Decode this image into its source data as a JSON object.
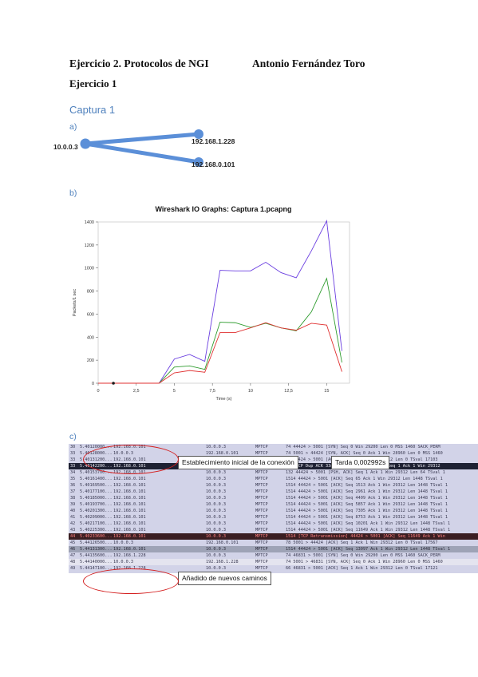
{
  "heading": {
    "title": "Ejercicio 2. Protocolos de NGI",
    "author": "Antonio Fernández Toro",
    "exercise": "Ejercicio 1"
  },
  "capture": "Captura 1",
  "sections": {
    "a": "a)",
    "b": "b)",
    "c": "c)"
  },
  "network": {
    "nodes": [
      {
        "label": "10.0.0.3"
      },
      {
        "label": "192.168.1.228"
      },
      {
        "label": "192.168.0.101"
      }
    ]
  },
  "chart_data": {
    "type": "line",
    "title": "Wireshark IO Graphs: Captura 1.pcapng",
    "xlabel": "Time (s)",
    "ylabel": "Packets/1 sec",
    "xlim": [
      0,
      16.5
    ],
    "ylim": [
      0,
      1400
    ],
    "xticks": [
      "0",
      "2,5",
      "5",
      "7,5",
      "10",
      "12,5",
      "15"
    ],
    "yticks": [
      "0",
      "200",
      "400",
      "600",
      "800",
      "1000",
      "1200",
      "1400"
    ],
    "x": [
      0,
      1,
      2,
      3,
      4,
      5,
      6,
      7,
      8,
      9,
      10,
      11,
      12,
      13,
      14,
      15,
      16
    ],
    "series": [
      {
        "color": "#6a3ee0",
        "values": [
          0,
          0,
          0,
          0,
          0,
          210,
          250,
          190,
          980,
          975,
          975,
          1050,
          960,
          915,
          1150,
          1410,
          280
        ]
      },
      {
        "color": "#2e9c2e",
        "values": [
          0,
          0,
          0,
          0,
          0,
          140,
          150,
          120,
          530,
          525,
          485,
          520,
          480,
          455,
          620,
          910,
          180
        ]
      },
      {
        "color": "#e03030",
        "values": [
          0,
          0,
          0,
          0,
          0,
          90,
          110,
          95,
          440,
          440,
          480,
          525,
          480,
          460,
          520,
          505,
          100
        ]
      }
    ]
  },
  "packets": {
    "rows": [
      {
        "no": "30",
        "time": "5.40120000...",
        "src": "192.168.0.101",
        "dst": "10.0.0.3",
        "proto": "MPTCP",
        "info": "74 44424 > 5001 [SYN] Seq 0 Win 29200 Len 0 MSS 1460 SACK_PERM"
      },
      {
        "no": "33",
        "time": "5.40128000...",
        "src": "10.0.0.3",
        "dst": "192.168.0.101",
        "proto": "MPTCP",
        "info": "74 5001 > 44424 [SYN, ACK] Seq 0 Ack 1 Win 28960 Len 0 MSS 1460"
      },
      {
        "no": "33",
        "time": "5.40131200...",
        "src": "192.168.0.101",
        "dst": "10.0.0.3",
        "proto": "MPTCP",
        "info": "66 44424 > 5001 [ACK] Seq 1 Ack 1 Win 29312 Len 0 TSval 17103"
      },
      {
        "no": "33",
        "time": "5.40142200...",
        "src": "192.168.0.101",
        "dst": "10.0.0.3",
        "proto": "MPTCP",
        "info": "94 [TCP Dup ACK 33#1] 44424 > 5001 [ACK] Seq 1 Ack 1 Win 29312"
      },
      {
        "no": "34",
        "time": "5.40153700...",
        "src": "192.168.0.101",
        "dst": "10.0.0.3",
        "proto": "MPTCP",
        "info": "132 44424 > 5001 [PSH, ACK] Seq 1 Ack 1 Win 29312 Len 64 TSval 1"
      },
      {
        "no": "35",
        "time": "5.40161400...",
        "src": "192.168.0.101",
        "dst": "10.0.0.3",
        "proto": "MPTCP",
        "info": "1514 44424 > 5001 [ACK] Seq 65 Ack 1 Win 29312 Len 1448 TSval 1"
      },
      {
        "no": "36",
        "time": "5.40169500...",
        "src": "192.168.0.101",
        "dst": "10.0.0.3",
        "proto": "MPTCP",
        "info": "1514 44424 > 5001 [ACK] Seq 1513 Ack 1 Win 29312 Len 1448 TSval 1"
      },
      {
        "no": "37",
        "time": "5.40177100...",
        "src": "192.168.0.101",
        "dst": "10.0.0.3",
        "proto": "MPTCP",
        "info": "1514 44424 > 5001 [ACK] Seq 2961 Ack 1 Win 29312 Len 1448 TSval 1"
      },
      {
        "no": "38",
        "time": "5.40185000...",
        "src": "192.168.0.101",
        "dst": "10.0.0.3",
        "proto": "MPTCP",
        "info": "1514 44424 > 5001 [ACK] Seq 4409 Ack 1 Win 29312 Len 1448 TSval 1"
      },
      {
        "no": "39",
        "time": "5.40193700...",
        "src": "192.168.0.101",
        "dst": "10.0.0.3",
        "proto": "MPTCP",
        "info": "1514 44424 > 5001 [ACK] Seq 5857 Ack 1 Win 29312 Len 1448 TSval 1"
      },
      {
        "no": "40",
        "time": "5.40201300...",
        "src": "192.168.0.101",
        "dst": "10.0.0.3",
        "proto": "MPTCP",
        "info": "1514 44424 > 5001 [ACK] Seq 7305 Ack 1 Win 29312 Len 1448 TSval 1"
      },
      {
        "no": "41",
        "time": "5.40209000...",
        "src": "192.168.0.101",
        "dst": "10.0.0.3",
        "proto": "MPTCP",
        "info": "1514 44424 > 5001 [ACK] Seq 8753 Ack 1 Win 29312 Len 1448 TSval 1"
      },
      {
        "no": "42",
        "time": "5.40217100...",
        "src": "192.168.0.101",
        "dst": "10.0.0.3",
        "proto": "MPTCP",
        "info": "1514 44424 > 5001 [ACK] Seq 10201 Ack 1 Win 29312 Len 1448 TSval 1"
      },
      {
        "no": "43",
        "time": "5.40225300...",
        "src": "192.168.0.101",
        "dst": "10.0.0.3",
        "proto": "MPTCP",
        "info": "1514 44424 > 5001 [ACK] Seq 11649 Ack 1 Win 29312 Len 1448 TSval 1"
      },
      {
        "no": "44",
        "time": "5.40233600...",
        "src": "192.168.0.101",
        "dst": "10.0.0.3",
        "proto": "MPTCP",
        "info": "1514 [TCP Retransmission] 44424 > 5001 [ACK] Seq 11649 Ack 1 Win"
      },
      {
        "no": "45",
        "time": "5.44126500...",
        "src": "10.0.0.3",
        "dst": "192.168.0.101",
        "proto": "MPTCP",
        "info": "78 5001 > 44424 [ACK] Seq 1 Ack 1 Win 29312 Len 0 TSval 17567"
      },
      {
        "no": "46",
        "time": "5.44131300...",
        "src": "192.168.0.101",
        "dst": "10.0.0.3",
        "proto": "MPTCP",
        "info": "1514 44424 > 5001 [ACK] Seq 13097 Ack 1 Win 29312 Len 1448 TSval 1"
      },
      {
        "no": "47",
        "time": "5.44135600...",
        "src": "192.168.1.228",
        "dst": "10.0.0.3",
        "proto": "MPTCP",
        "info": "74 46831 > 5001 [SYN] Seq 0 Win 29200 Len 0 MSS 1460 SACK_PERM"
      },
      {
        "no": "48",
        "time": "5.44140000...",
        "src": "10.0.0.3",
        "dst": "192.168.1.228",
        "proto": "MPTCP",
        "info": "74 5001 > 46831 [SYN, ACK] Seq 0 Ack 1 Win 28960 Len 0 MSS 1460"
      },
      {
        "no": "49",
        "time": "5.44147100...",
        "src": "192.168.1.228",
        "dst": "10.0.0.3",
        "proto": "MPTCP",
        "info": "66 46831 > 5001 [ACK] Seq 1 Ack 1 Win 29312 Len 0 TSval 17121"
      }
    ],
    "callouts": {
      "connection": "Establecimiento inicial de la conexión",
      "delay": "Tarda 0,002992s",
      "paths": "Añadido de nuevos caminos"
    }
  }
}
